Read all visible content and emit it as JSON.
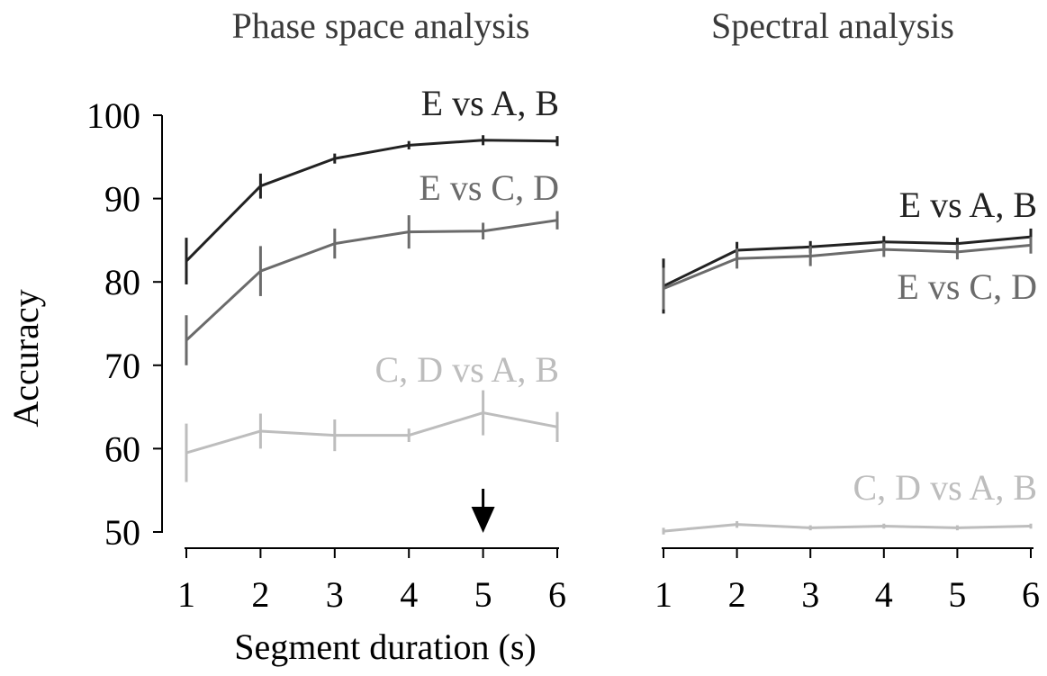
{
  "chart_data": [
    {
      "type": "line",
      "id": "phase",
      "title": "Phase space analysis",
      "xlabel": "Segment duration (s)",
      "ylabel": "Accuracy",
      "x": [
        1,
        2,
        3,
        4,
        5,
        6
      ],
      "xticks": [
        "1",
        "2",
        "3",
        "4",
        "5",
        "6"
      ],
      "yticks": [
        "50",
        "60",
        "70",
        "80",
        "90",
        "100"
      ],
      "ylim": [
        50,
        100
      ],
      "annotation": {
        "type": "arrow-down",
        "x": 5
      },
      "series": [
        {
          "name": "E vs A, B",
          "color": "#222222",
          "values": [
            82.5,
            91.5,
            94.8,
            96.4,
            97.0,
            96.9
          ],
          "errors": [
            2.8,
            1.5,
            0.6,
            0.5,
            0.6,
            0.6
          ]
        },
        {
          "name": "E vs C, D",
          "color": "#6b6b6b",
          "values": [
            73.0,
            81.3,
            84.6,
            86.0,
            86.1,
            87.4
          ],
          "errors": [
            3.0,
            3.0,
            1.8,
            2.0,
            1.0,
            1.1
          ]
        },
        {
          "name": "C, D vs A, B",
          "color": "#bdbdbd",
          "values": [
            59.5,
            62.1,
            61.6,
            61.6,
            64.3,
            62.6
          ],
          "errors": [
            3.5,
            2.1,
            1.9,
            0.8,
            2.7,
            1.8
          ]
        }
      ]
    },
    {
      "type": "line",
      "id": "spectral",
      "title": "Spectral analysis",
      "xlabel": "",
      "ylabel": "",
      "x": [
        1,
        2,
        3,
        4,
        5,
        6
      ],
      "xticks": [
        "1",
        "2",
        "3",
        "4",
        "5",
        "6"
      ],
      "yticks": [],
      "ylim": [
        50,
        100
      ],
      "series": [
        {
          "name": "E vs A, B",
          "color": "#222222",
          "values": [
            79.5,
            83.8,
            84.2,
            84.8,
            84.6,
            85.4
          ],
          "errors": [
            3.3,
            1.0,
            0.7,
            0.7,
            0.7,
            1.0
          ]
        },
        {
          "name": "E vs C, D",
          "color": "#6b6b6b",
          "values": [
            79.2,
            82.8,
            83.1,
            83.9,
            83.6,
            84.4
          ],
          "errors": [
            2.5,
            1.2,
            1.2,
            0.9,
            0.9,
            1.0
          ]
        },
        {
          "name": "C, D vs A, B",
          "color": "#bdbdbd",
          "values": [
            50.1,
            50.9,
            50.5,
            50.7,
            50.5,
            50.7
          ],
          "errors": [
            0.4,
            0.4,
            0.3,
            0.3,
            0.3,
            0.3
          ]
        }
      ]
    }
  ]
}
